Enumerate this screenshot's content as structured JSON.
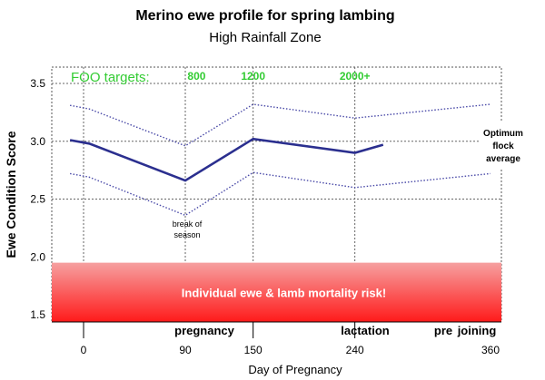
{
  "chart_data": {
    "type": "line",
    "title": "Merino ewe profile for spring lambing",
    "subtitle": "High Rainfall Zone",
    "xlabel": "Day of Pregnancy",
    "ylabel": "Ewe Condition Score",
    "ylim": [
      1.5,
      3.6
    ],
    "y_ticks": [
      "3.5",
      "3.0",
      "2.5",
      "2.0",
      "1.5"
    ],
    "x_ticks": [
      {
        "label": "0",
        "x": 0
      },
      {
        "label": "90",
        "x": 90
      },
      {
        "label": "150",
        "x": 150
      },
      {
        "label": "240",
        "x": 240
      },
      {
        "label": "360",
        "x": 360
      }
    ],
    "grid": true,
    "series": [
      {
        "key": "optimum",
        "name": "Optimum flock average",
        "style": "solid",
        "color": "#2b2f8f",
        "points": [
          [
            -12,
            3.01
          ],
          [
            5,
            2.98
          ],
          [
            90,
            2.66
          ],
          [
            150,
            3.02
          ],
          [
            240,
            2.9
          ],
          [
            265,
            2.97
          ]
        ]
      },
      {
        "key": "upper",
        "style": "dotted",
        "color": "#4a4aa8",
        "points": [
          [
            -12,
            3.31
          ],
          [
            5,
            3.28
          ],
          [
            90,
            2.96
          ],
          [
            150,
            3.32
          ],
          [
            240,
            3.2
          ],
          [
            360,
            3.32
          ]
        ]
      },
      {
        "key": "lower",
        "style": "dotted",
        "color": "#4a4aa8",
        "points": [
          [
            -12,
            2.72
          ],
          [
            5,
            2.69
          ],
          [
            90,
            2.36
          ],
          [
            150,
            2.73
          ],
          [
            240,
            2.6
          ],
          [
            360,
            2.72
          ]
        ]
      }
    ],
    "optimum_label": [
      "Optimum",
      "flock",
      "average"
    ],
    "foo": {
      "label": "FOO targets:",
      "targets": [
        {
          "label": "800",
          "x": 100
        },
        {
          "label": "1200",
          "x": 150
        },
        {
          "label": "2000+",
          "x": 240
        }
      ],
      "color": "#33cc33"
    },
    "annotation": {
      "text": [
        "break of",
        "season"
      ],
      "x": 90,
      "y": 2.26
    },
    "risk_zone": {
      "text": "Individual ewe & lamb mortality risk!",
      "y_from": 1.5,
      "y_to": 1.95,
      "color_top": "#f6a0a0",
      "color_bottom": "#ff1a1a"
    },
    "phases": [
      {
        "label": "pregnancy",
        "from": 0,
        "to": 150
      },
      {
        "label": "lactation",
        "from": 150,
        "to": 240
      },
      {
        "label": "pre",
        "from": 240,
        "to": 268
      },
      {
        "label": "joining",
        "from": 268,
        "to": 360
      }
    ]
  }
}
